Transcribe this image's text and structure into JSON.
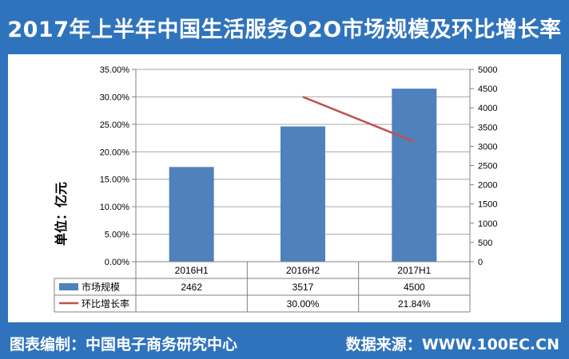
{
  "title": "2017年上半年中国生活服务O2O市场规模及环比增长率",
  "footer": {
    "left_label": "图表编制：",
    "left_value": "中国电子商务研究中心",
    "right_label": "数据来源：",
    "right_value": "WWW.100EC.CN"
  },
  "colors": {
    "background": "#2f73bd",
    "bar": "#4f81bd",
    "line": "#c0504d",
    "grid": "#a6a6a6"
  },
  "chart_data": {
    "type": "bar",
    "ylabel": "单位：亿元",
    "categories": [
      "2016H1",
      "2016H2",
      "2017H1"
    ],
    "series": [
      {
        "name": "市场规模",
        "type": "bar",
        "axis": "right",
        "values": [
          2462,
          3517,
          4500
        ],
        "labels": [
          "2462",
          "3517",
          "4500"
        ]
      },
      {
        "name": "环比增长率",
        "type": "line",
        "axis": "left",
        "values": [
          null,
          30.0,
          21.84
        ],
        "labels": [
          "",
          "30.00%",
          "21.84%"
        ]
      }
    ],
    "y_left": {
      "min": 0,
      "max": 35,
      "step": 5,
      "ticks": [
        "0.00%",
        "5.00%",
        "10.00%",
        "15.00%",
        "20.00%",
        "25.00%",
        "30.00%",
        "35.00%"
      ]
    },
    "y_right": {
      "min": 0,
      "max": 5000,
      "step": 500,
      "ticks": [
        "0",
        "500",
        "1000",
        "1500",
        "2000",
        "2500",
        "3000",
        "3500",
        "4000",
        "4500",
        "5000"
      ]
    },
    "grid": true,
    "legend": "data-table"
  }
}
